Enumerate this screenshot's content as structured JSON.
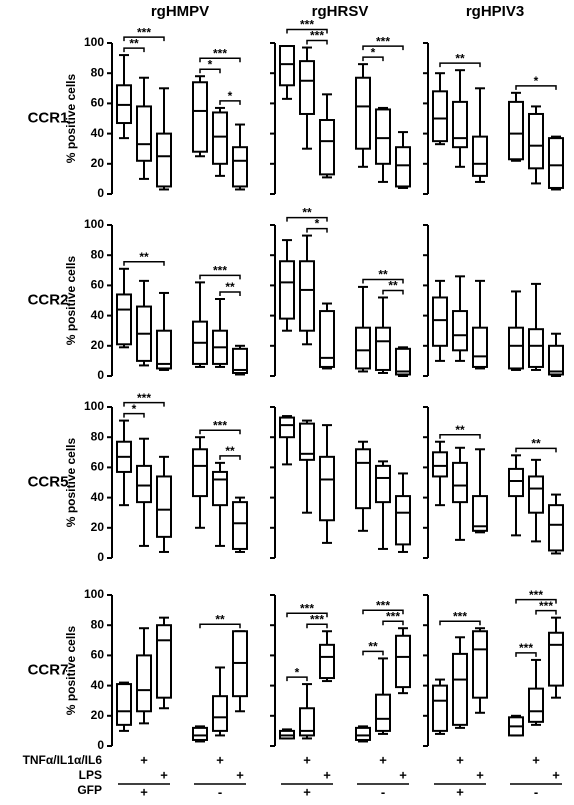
{
  "chart_data": [
    {
      "type": "box",
      "title": "rgHMPV",
      "row_label": "CCR1",
      "ylabel": "% positive cells",
      "ylim": [
        0,
        100
      ],
      "yticks": [
        0,
        20,
        40,
        60,
        80,
        100
      ],
      "show_tick_labels": true,
      "boxes": [
        {
          "min": 37,
          "q1": 47,
          "median": 59,
          "q3": 72,
          "max": 92
        },
        {
          "min": 10,
          "q1": 22,
          "median": 33,
          "q3": 58,
          "max": 77
        },
        {
          "min": 3,
          "q1": 5,
          "median": 25,
          "q3": 40,
          "max": 70
        },
        {
          "min": 25,
          "q1": 28,
          "median": 55,
          "q3": 74,
          "max": 78
        },
        {
          "min": 12,
          "q1": 20,
          "median": 38,
          "q3": 54,
          "max": 57
        },
        {
          "min": 3,
          "q1": 5,
          "median": 22,
          "q3": 31,
          "max": 46
        }
      ],
      "brackets": [
        {
          "label": "**",
          "between": [
            0,
            1
          ]
        },
        {
          "label": "***",
          "between": [
            0,
            2
          ]
        },
        {
          "label": "*",
          "between": [
            3,
            4
          ]
        },
        {
          "label": "*",
          "between": [
            4,
            5
          ]
        },
        {
          "label": "***",
          "between": [
            3,
            5
          ]
        }
      ]
    },
    {
      "type": "box",
      "title": "rgHRSV",
      "ylim": [
        0,
        100
      ],
      "yticks": [
        0,
        20,
        40,
        60,
        80,
        100
      ],
      "show_tick_labels": false,
      "boxes": [
        {
          "min": 63,
          "q1": 72,
          "median": 86,
          "q3": 98,
          "max": 98
        },
        {
          "min": 30,
          "q1": 53,
          "median": 75,
          "q3": 88,
          "max": 97
        },
        {
          "min": 11,
          "q1": 13,
          "median": 35,
          "q3": 49,
          "max": 66
        },
        {
          "min": 18,
          "q1": 30,
          "median": 58,
          "q3": 77,
          "max": 86
        },
        {
          "min": 8,
          "q1": 20,
          "median": 37,
          "q3": 56,
          "max": 57
        },
        {
          "min": 4,
          "q1": 5,
          "median": 19,
          "q3": 31,
          "max": 41
        }
      ],
      "brackets": [
        {
          "label": "***",
          "between": [
            1,
            2
          ]
        },
        {
          "label": "***",
          "between": [
            0,
            2
          ]
        },
        {
          "label": "*",
          "between": [
            3,
            4
          ]
        },
        {
          "label": "***",
          "between": [
            3,
            5
          ]
        }
      ]
    },
    {
      "type": "box",
      "title": "rgHPIV3",
      "ylim": [
        0,
        100
      ],
      "yticks": [
        0,
        20,
        40,
        60,
        80,
        100
      ],
      "show_tick_labels": false,
      "boxes": [
        {
          "min": 33,
          "q1": 35,
          "median": 50,
          "q3": 68,
          "max": 80
        },
        {
          "min": 18,
          "q1": 31,
          "median": 37,
          "q3": 61,
          "max": 82
        },
        {
          "min": 8,
          "q1": 12,
          "median": 20,
          "q3": 38,
          "max": 70
        },
        {
          "min": 22,
          "q1": 23,
          "median": 40,
          "q3": 61,
          "max": 67
        },
        {
          "min": 7,
          "q1": 17,
          "median": 32,
          "q3": 53,
          "max": 58
        },
        {
          "min": 3,
          "q1": 4,
          "median": 19,
          "q3": 37,
          "max": 38
        }
      ],
      "brackets": [
        {
          "label": "**",
          "between": [
            0,
            2
          ]
        },
        {
          "label": "*",
          "between": [
            3,
            5
          ]
        }
      ]
    },
    {
      "type": "box",
      "row_label": "CCR2",
      "ylabel": "% positive cells",
      "ylim": [
        0,
        100
      ],
      "yticks": [
        0,
        20,
        40,
        60,
        80,
        100
      ],
      "show_tick_labels": true,
      "boxes": [
        {
          "min": 19,
          "q1": 21,
          "median": 44,
          "q3": 54,
          "max": 71
        },
        {
          "min": 7,
          "q1": 10,
          "median": 28,
          "q3": 46,
          "max": 63
        },
        {
          "min": 4,
          "q1": 5,
          "median": 8,
          "q3": 30,
          "max": 55
        },
        {
          "min": 6,
          "q1": 8,
          "median": 22,
          "q3": 36,
          "max": 62
        },
        {
          "min": 6,
          "q1": 8,
          "median": 19,
          "q3": 30,
          "max": 51
        },
        {
          "min": 1,
          "q1": 2,
          "median": 4,
          "q3": 18,
          "max": 20
        }
      ],
      "brackets": [
        {
          "label": "**",
          "between": [
            0,
            2
          ]
        },
        {
          "label": "**",
          "between": [
            4,
            5
          ]
        },
        {
          "label": "***",
          "between": [
            3,
            5
          ]
        }
      ]
    },
    {
      "type": "box",
      "ylim": [
        0,
        100
      ],
      "yticks": [
        0,
        20,
        40,
        60,
        80,
        100
      ],
      "show_tick_labels": false,
      "boxes": [
        {
          "min": 30,
          "q1": 38,
          "median": 62,
          "q3": 76,
          "max": 90
        },
        {
          "min": 21,
          "q1": 30,
          "median": 57,
          "q3": 76,
          "max": 93
        },
        {
          "min": 5,
          "q1": 6,
          "median": 12,
          "q3": 43,
          "max": 48
        },
        {
          "min": 3,
          "q1": 5,
          "median": 17,
          "q3": 32,
          "max": 59
        },
        {
          "min": 2,
          "q1": 4,
          "median": 23,
          "q3": 32,
          "max": 52
        },
        {
          "min": 0,
          "q1": 1,
          "median": 3,
          "q3": 18,
          "max": 19
        }
      ],
      "brackets": [
        {
          "label": "*",
          "between": [
            1,
            2
          ]
        },
        {
          "label": "**",
          "between": [
            0,
            2
          ]
        },
        {
          "label": "**",
          "between": [
            4,
            5
          ]
        },
        {
          "label": "**",
          "between": [
            3,
            5
          ]
        }
      ]
    },
    {
      "type": "box",
      "ylim": [
        0,
        100
      ],
      "yticks": [
        0,
        20,
        40,
        60,
        80,
        100
      ],
      "show_tick_labels": false,
      "boxes": [
        {
          "min": 10,
          "q1": 20,
          "median": 37,
          "q3": 52,
          "max": 63
        },
        {
          "min": 10,
          "q1": 17,
          "median": 27,
          "q3": 43,
          "max": 66
        },
        {
          "min": 5,
          "q1": 6,
          "median": 13,
          "q3": 32,
          "max": 63
        },
        {
          "min": 4,
          "q1": 5,
          "median": 20,
          "q3": 32,
          "max": 56
        },
        {
          "min": 4,
          "q1": 6,
          "median": 20,
          "q3": 31,
          "max": 61
        },
        {
          "min": 0,
          "q1": 1,
          "median": 3,
          "q3": 20,
          "max": 28
        }
      ],
      "brackets": []
    },
    {
      "type": "box",
      "row_label": "CCR5",
      "ylabel": "% positive cells",
      "ylim": [
        0,
        100
      ],
      "yticks": [
        0,
        20,
        40,
        60,
        80,
        100
      ],
      "show_tick_labels": true,
      "boxes": [
        {
          "min": 35,
          "q1": 57,
          "median": 67,
          "q3": 77,
          "max": 91
        },
        {
          "min": 8,
          "q1": 37,
          "median": 48,
          "q3": 61,
          "max": 79
        },
        {
          "min": 4,
          "q1": 14,
          "median": 32,
          "q3": 54,
          "max": 67
        },
        {
          "min": 20,
          "q1": 41,
          "median": 61,
          "q3": 72,
          "max": 80
        },
        {
          "min": 8,
          "q1": 35,
          "median": 52,
          "q3": 57,
          "max": 63
        },
        {
          "min": 4,
          "q1": 6,
          "median": 23,
          "q3": 37,
          "max": 40
        }
      ],
      "brackets": [
        {
          "label": "*",
          "between": [
            0,
            1
          ]
        },
        {
          "label": "***",
          "between": [
            0,
            2
          ]
        },
        {
          "label": "**",
          "between": [
            4,
            5
          ]
        },
        {
          "label": "***",
          "between": [
            3,
            5
          ]
        }
      ]
    },
    {
      "type": "box",
      "ylim": [
        0,
        100
      ],
      "yticks": [
        0,
        20,
        40,
        60,
        80,
        100
      ],
      "show_tick_labels": false,
      "boxes": [
        {
          "min": 62,
          "q1": 80,
          "median": 88,
          "q3": 93,
          "max": 94
        },
        {
          "min": 30,
          "q1": 65,
          "median": 69,
          "q3": 89,
          "max": 91
        },
        {
          "min": 10,
          "q1": 25,
          "median": 52,
          "q3": 67,
          "max": 88
        },
        {
          "min": 18,
          "q1": 33,
          "median": 63,
          "q3": 72,
          "max": 77
        },
        {
          "min": 6,
          "q1": 37,
          "median": 53,
          "q3": 61,
          "max": 64
        },
        {
          "min": 4,
          "q1": 9,
          "median": 30,
          "q3": 41,
          "max": 56
        }
      ],
      "brackets": []
    },
    {
      "type": "box",
      "ylim": [
        0,
        100
      ],
      "yticks": [
        0,
        20,
        40,
        60,
        80,
        100
      ],
      "show_tick_labels": false,
      "boxes": [
        {
          "min": 35,
          "q1": 54,
          "median": 61,
          "q3": 70,
          "max": 77
        },
        {
          "min": 12,
          "q1": 37,
          "median": 48,
          "q3": 63,
          "max": 73
        },
        {
          "min": 17,
          "q1": 18,
          "median": 21,
          "q3": 41,
          "max": 72
        },
        {
          "min": 15,
          "q1": 41,
          "median": 51,
          "q3": 59,
          "max": 68
        },
        {
          "min": 11,
          "q1": 30,
          "median": 46,
          "q3": 54,
          "max": 65
        },
        {
          "min": 3,
          "q1": 5,
          "median": 22,
          "q3": 35,
          "max": 42
        }
      ],
      "brackets": [
        {
          "label": "**",
          "between": [
            0,
            2
          ]
        },
        {
          "label": "**",
          "between": [
            3,
            5
          ]
        }
      ]
    },
    {
      "type": "box",
      "row_label": "CCR7",
      "ylabel": "% positive cells",
      "ylim": [
        0,
        100
      ],
      "yticks": [
        0,
        20,
        40,
        60,
        80,
        100
      ],
      "show_tick_labels": true,
      "boxes": [
        {
          "min": 10,
          "q1": 14,
          "median": 23,
          "q3": 41,
          "max": 42
        },
        {
          "min": 15,
          "q1": 23,
          "median": 37,
          "q3": 60,
          "max": 78
        },
        {
          "min": 25,
          "q1": 32,
          "median": 70,
          "q3": 80,
          "max": 85
        },
        {
          "min": 3,
          "q1": 4,
          "median": 7,
          "q3": 12,
          "max": 13
        },
        {
          "min": 7,
          "q1": 10,
          "median": 19,
          "q3": 33,
          "max": 52
        },
        {
          "min": 23,
          "q1": 33,
          "median": 55,
          "q3": 76,
          "max": 76
        }
      ],
      "brackets": [
        {
          "label": "**",
          "between": [
            3,
            5
          ]
        }
      ]
    },
    {
      "type": "box",
      "ylim": [
        0,
        100
      ],
      "yticks": [
        0,
        20,
        40,
        60,
        80,
        100
      ],
      "show_tick_labels": false,
      "boxes": [
        {
          "min": 5,
          "q1": 5,
          "median": 7,
          "q3": 10,
          "max": 11
        },
        {
          "min": 5,
          "q1": 7,
          "median": 10,
          "q3": 25,
          "max": 41
        },
        {
          "min": 43,
          "q1": 45,
          "median": 59,
          "q3": 67,
          "max": 76
        },
        {
          "min": 3,
          "q1": 4,
          "median": 7,
          "q3": 12,
          "max": 13
        },
        {
          "min": 8,
          "q1": 10,
          "median": 18,
          "q3": 34,
          "max": 58
        },
        {
          "min": 35,
          "q1": 39,
          "median": 59,
          "q3": 73,
          "max": 78
        }
      ],
      "brackets": [
        {
          "label": "*",
          "between": [
            0,
            1
          ]
        },
        {
          "label": "***",
          "between": [
            1,
            2
          ]
        },
        {
          "label": "***",
          "between": [
            0,
            2
          ]
        },
        {
          "label": "**",
          "between": [
            3,
            4
          ]
        },
        {
          "label": "***",
          "between": [
            4,
            5
          ]
        },
        {
          "label": "***",
          "between": [
            3,
            5
          ]
        }
      ]
    },
    {
      "type": "box",
      "ylim": [
        0,
        100
      ],
      "yticks": [
        0,
        20,
        40,
        60,
        80,
        100
      ],
      "show_tick_labels": false,
      "boxes": [
        {
          "min": 8,
          "q1": 10,
          "median": 30,
          "q3": 40,
          "max": 44
        },
        {
          "min": 12,
          "q1": 14,
          "median": 44,
          "q3": 61,
          "max": 72
        },
        {
          "min": 22,
          "q1": 32,
          "median": 64,
          "q3": 76,
          "max": 78
        },
        {
          "min": 7,
          "q1": 7,
          "median": 13,
          "q3": 19,
          "max": 20
        },
        {
          "min": 14,
          "q1": 16,
          "median": 23,
          "q3": 38,
          "max": 57
        },
        {
          "min": 32,
          "q1": 40,
          "median": 67,
          "q3": 75,
          "max": 85
        }
      ],
      "brackets": [
        {
          "label": "***",
          "between": [
            0,
            2
          ]
        },
        {
          "label": "***",
          "between": [
            3,
            4
          ]
        },
        {
          "label": "***",
          "between": [
            4,
            5
          ]
        },
        {
          "label": "***",
          "between": [
            3,
            5
          ]
        }
      ]
    }
  ],
  "treatments": {
    "rows": [
      {
        "label": "TNFα/IL1α/IL6",
        "signs": [
          null,
          "+",
          null,
          null,
          "+",
          null
        ]
      },
      {
        "label": "LPS",
        "signs": [
          null,
          null,
          "+",
          null,
          null,
          "+"
        ]
      }
    ],
    "groups": {
      "label": "GFP",
      "signs": [
        "+",
        "-"
      ]
    }
  }
}
